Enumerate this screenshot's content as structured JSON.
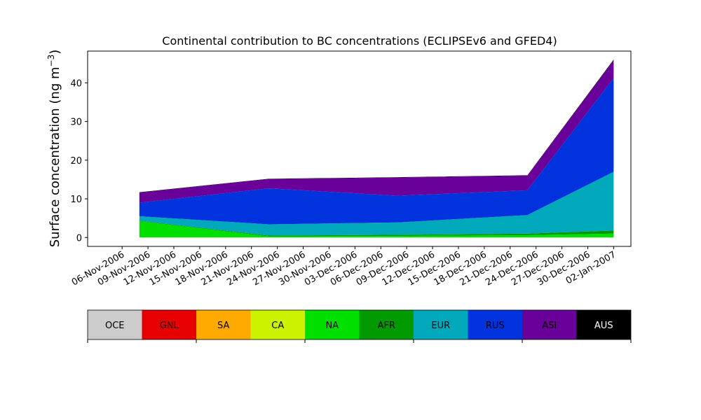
{
  "chart_data": {
    "type": "area",
    "title": "Continental contribution to BC concentrations (ECLIPSEv6 and GFED4)",
    "ylabel_main": "Surface concentration (ng m",
    "ylabel_sup": "−3",
    "ylabel_close": ")",
    "xlabel": "",
    "stacked": true,
    "xlim": [
      "2006-11-02",
      "2007-01-04"
    ],
    "ylim": [
      -2.3,
      48.2
    ],
    "yticks": [
      0,
      10,
      20,
      30,
      40
    ],
    "ytick_labels": [
      "0",
      "10",
      "20",
      "30",
      "40"
    ],
    "xticks": [
      "2006-11-06",
      "2006-11-09",
      "2006-11-12",
      "2006-11-15",
      "2006-11-18",
      "2006-11-21",
      "2006-11-24",
      "2006-11-27",
      "2006-11-30",
      "2006-12-03",
      "2006-12-06",
      "2006-12-09",
      "2006-12-12",
      "2006-12-15",
      "2006-12-18",
      "2006-12-21",
      "2006-12-24",
      "2006-12-27",
      "2006-12-30",
      "2007-01-02"
    ],
    "xtick_labels": [
      "06-Nov-2006",
      "09-Nov-2006",
      "12-Nov-2006",
      "15-Nov-2006",
      "18-Nov-2006",
      "21-Nov-2006",
      "24-Nov-2006",
      "27-Nov-2006",
      "30-Nov-2006",
      "03-Dec-2006",
      "06-Dec-2006",
      "09-Dec-2006",
      "12-Dec-2006",
      "15-Dec-2006",
      "18-Dec-2006",
      "21-Dec-2006",
      "24-Dec-2006",
      "27-Dec-2006",
      "30-Dec-2006",
      "02-Jan-2007"
    ],
    "x": [
      "2006-11-08",
      "2006-11-23",
      "2006-12-08",
      "2006-12-23",
      "2007-01-02"
    ],
    "series": [
      {
        "name": "OCE",
        "color": "#cccccc",
        "values": [
          0.0,
          0.0,
          0.0,
          0.0,
          0.0
        ]
      },
      {
        "name": "GNL",
        "color": "#e60000",
        "values": [
          0.0,
          0.0,
          0.0,
          0.0,
          0.0
        ]
      },
      {
        "name": "SA",
        "color": "#ffaa00",
        "values": [
          0.0,
          0.0,
          0.0,
          0.0,
          0.0
        ]
      },
      {
        "name": "CA",
        "color": "#ccf200",
        "values": [
          0.0,
          0.0,
          0.0,
          0.0,
          0.0
        ]
      },
      {
        "name": "NA",
        "color": "#00e000",
        "values": [
          4.2,
          0.3,
          0.4,
          0.6,
          1.0
        ]
      },
      {
        "name": "AFR",
        "color": "#009a00",
        "values": [
          0.1,
          0.2,
          0.3,
          0.4,
          0.8
        ]
      },
      {
        "name": "EUR",
        "color": "#00a8bc",
        "values": [
          1.2,
          2.9,
          3.2,
          4.8,
          15.2
        ]
      },
      {
        "name": "RUS",
        "color": "#0033dd",
        "values": [
          3.5,
          9.3,
          6.9,
          6.4,
          24.2
        ]
      },
      {
        "name": "ASI",
        "color": "#6a0099",
        "values": [
          2.6,
          2.4,
          4.7,
          3.8,
          4.6
        ]
      },
      {
        "name": "AUS",
        "color": "#000000",
        "values": [
          0.1,
          0.1,
          0.1,
          0.1,
          0.2
        ]
      }
    ],
    "legend_position": "bottom"
  }
}
